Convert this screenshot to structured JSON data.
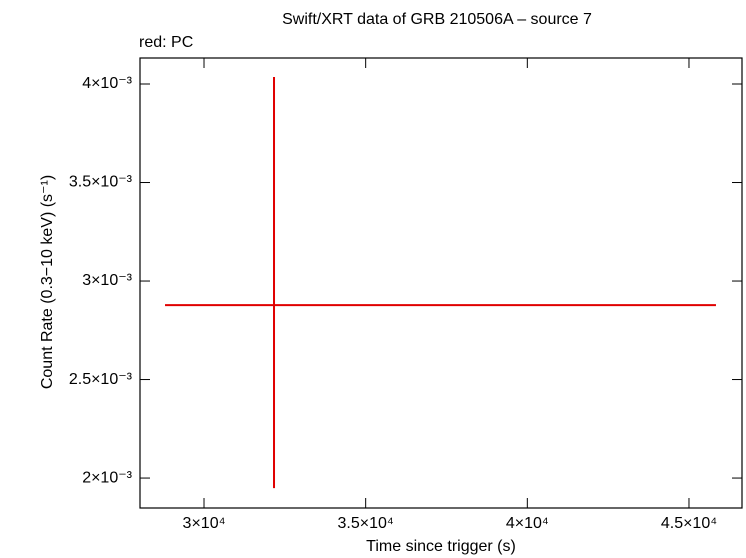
{
  "chart_data": {
    "type": "errorbar",
    "title": "Swift/XRT data of GRB 210506A – source 7",
    "subtitle": "red: PC",
    "x_label": "Time since trigger (s)",
    "y_label": "Count Rate (0.3−10 keV) (s⁻¹)",
    "series": [
      {
        "color": "#e00000",
        "x": [
          32165
        ],
        "xerr_minus": [
          3371
        ],
        "xerr_plus": [
          13670
        ],
        "values": [
          0.002878
        ],
        "yerr_plus": [
          0.0011575
        ],
        "yerr_minus": [
          0.000929
        ]
      }
    ],
    "xlim": [
      28020,
      46640
    ],
    "xticks": [
      {
        "value": 30000,
        "label": "3×10⁴"
      },
      {
        "value": 35000,
        "label": "3.5×10⁴"
      },
      {
        "value": 40000,
        "label": "4×10⁴"
      },
      {
        "value": 45000,
        "label": "4.5×10⁴"
      }
    ],
    "ylim": [
      0.001848,
      0.004132
    ],
    "yticks": [
      {
        "value": 0.002,
        "label": "2×10⁻³"
      },
      {
        "value": 0.0025,
        "label": "2.5×10⁻³"
      },
      {
        "value": 0.003,
        "label": "3×10⁻³"
      },
      {
        "value": 0.0035,
        "label": "3.5×10⁻³"
      },
      {
        "value": 0.004,
        "label": "4×10⁻³"
      }
    ]
  }
}
